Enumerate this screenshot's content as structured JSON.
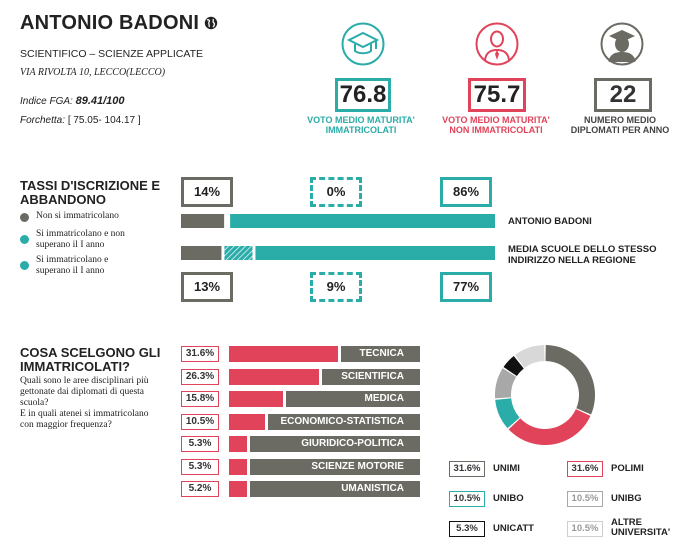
{
  "header": {
    "school_name": "ANTONIO BADONI",
    "school_type": "SCIENTIFICO – SCIENZE APPLICATE",
    "address": "VIA RIVOLTA 10, LECCO(LECCO)",
    "fga_label": "Indice FGA:",
    "fga_value": "89.41/100",
    "range_label": "Forchetta:",
    "range_value": "[ 75.05- 104.17 ]"
  },
  "stats": [
    {
      "value": "76.8",
      "label_1": "VOTO MEDIO MATURITA'",
      "label_2": "IMMATRICOLATI",
      "color": "#2aaca8",
      "icon": "graduation-cap-icon"
    },
    {
      "value": "75.7",
      "label_1": "VOTO MEDIO MATURITA'",
      "label_2": "NON IMMATRICOLATI",
      "color": "#e0435a",
      "icon": "person-tie-icon"
    },
    {
      "value": "22",
      "label_1": "NUMERO MEDIO",
      "label_2": "DIPLOMATI PER ANNO",
      "color": "#6b6b63",
      "icon": "graduate-person-icon"
    }
  ],
  "enrollment": {
    "title_1": "TASSI D'ISCRIZIONE E",
    "title_2": "ABBANDONO",
    "legend": [
      {
        "label_1": "Non si immatricolano",
        "label_2": "",
        "color": "#6b6b63"
      },
      {
        "label_1": "Si immatricolano e non",
        "label_2": "superano il I anno",
        "color": "#2aaca8"
      },
      {
        "label_1": "Si immatricolano e",
        "label_2": "superano il I anno",
        "color": "#2aaca8"
      }
    ],
    "school": {
      "label": "ANTONIO BADONI",
      "not_enrolled": "14%",
      "dropped": "0%",
      "passed": "86%",
      "values": [
        14,
        0,
        86
      ]
    },
    "region": {
      "label_1": "MEDIA SCUOLE DELLO STESSO",
      "label_2": "INDIRIZZO NELLA REGIONE",
      "not_enrolled": "13%",
      "dropped": "9%",
      "passed": "77%",
      "values": [
        13,
        9,
        77
      ]
    }
  },
  "disciplines": {
    "title_1": "COSA SCELGONO GLI",
    "title_2": "IMMATRICOLATI?",
    "desc_1": "Quali sono le aree disciplinari più",
    "desc_2": "gettonate dai diplomati di questa",
    "desc_3": "scuola?",
    "desc_4": "E in quali atenei si immatricolano",
    "desc_5": "con maggior frequenza?",
    "items": [
      {
        "pct": "31.6%",
        "name": "TECNICA",
        "value": 31.6
      },
      {
        "pct": "26.3%",
        "name": "SCIENTIFICA",
        "value": 26.3
      },
      {
        "pct": "15.8%",
        "name": "MEDICA",
        "value": 15.8
      },
      {
        "pct": "10.5%",
        "name": "ECONOMICO-STATISTICA",
        "value": 10.5
      },
      {
        "pct": "5.3%",
        "name": "GIURIDICO-POLITICA",
        "value": 5.3
      },
      {
        "pct": "5.3%",
        "name": "SCIENZE MOTORIE",
        "value": 5.3
      },
      {
        "pct": "5.2%",
        "name": "UMANISTICA",
        "value": 5.2
      }
    ]
  },
  "universities": {
    "items": [
      {
        "pct": "31.6%",
        "name_1": "UNIMI",
        "name_2": "",
        "value": 31.6,
        "color": "#6b6b63"
      },
      {
        "pct": "31.6%",
        "name_1": "POLIMI",
        "name_2": "",
        "value": 31.6,
        "color": "#e0435a"
      },
      {
        "pct": "10.5%",
        "name_1": "UNIBO",
        "name_2": "",
        "value": 10.5,
        "color": "#2aaca8"
      },
      {
        "pct": "10.5%",
        "name_1": "UNIBG",
        "name_2": "",
        "value": 10.5,
        "color": "#a8a8a8"
      },
      {
        "pct": "5.3%",
        "name_1": "UNICATT",
        "name_2": "",
        "value": 5.3,
        "color": "#111111"
      },
      {
        "pct": "10.5%",
        "name_1": "ALTRE",
        "name_2": "UNIVERSITA'",
        "value": 10.5,
        "color": "#d8d8d8"
      }
    ]
  },
  "colors": {
    "gray": "#6b6b63",
    "teal": "#2aaca8",
    "red": "#e0435a"
  }
}
